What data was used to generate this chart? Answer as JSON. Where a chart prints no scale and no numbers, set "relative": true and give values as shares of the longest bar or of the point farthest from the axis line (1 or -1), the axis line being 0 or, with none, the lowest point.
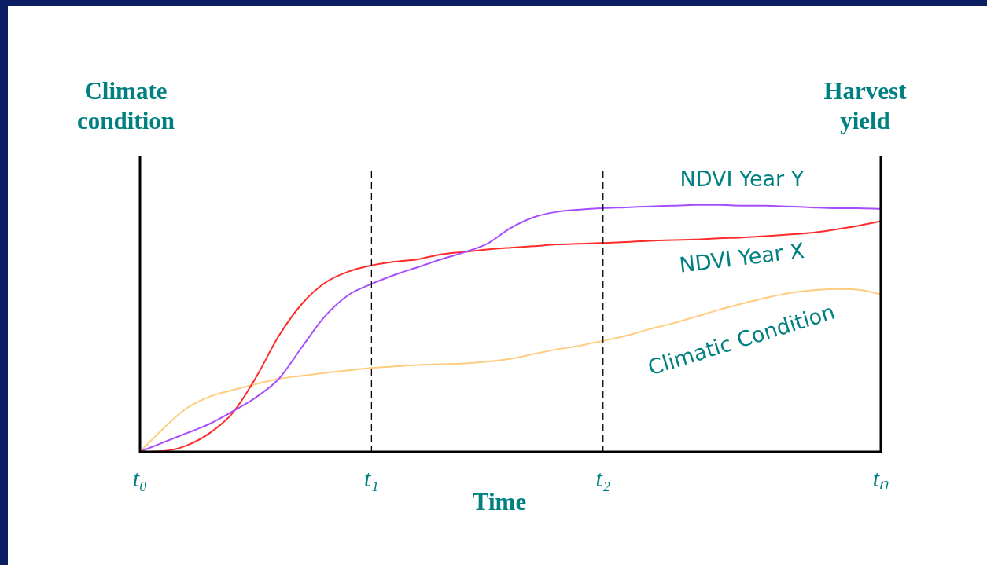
{
  "chart_data": {
    "type": "line",
    "relative": true,
    "xlabel": "Time",
    "ylabel": "Climate condition",
    "y2label": "Harvest yield",
    "categories": [
      "t₀",
      null,
      null,
      null,
      null,
      null,
      null,
      null,
      null,
      null,
      "t₁",
      null,
      null,
      null,
      null,
      null,
      null,
      null,
      null,
      null,
      "t₂",
      null,
      null,
      null,
      null,
      null,
      null,
      null,
      null,
      null,
      null,
      null,
      "tₙ"
    ],
    "series": [
      {
        "name": "NDVI Year Y",
        "color": "#a64dff",
        "values": [
          0,
          0.038,
          0.075,
          0.113,
          0.164,
          0.22,
          0.296,
          0.425,
          0.55,
          0.635,
          0.68,
          0.717,
          0.748,
          0.78,
          0.808,
          0.843,
          0.906,
          0.95,
          0.972,
          0.981,
          0.987,
          0.99,
          0.994,
          0.997,
          1,
          1,
          0.997,
          0.997,
          0.994,
          0.99,
          0.987,
          0.987,
          0.984
        ]
      },
      {
        "name": "NDVI Year X",
        "color": "#ff2a2a",
        "values": [
          0,
          0.003,
          0.025,
          0.075,
          0.157,
          0.3,
          0.47,
          0.6,
          0.685,
          0.73,
          0.755,
          0.77,
          0.78,
          0.8,
          0.81,
          0.82,
          0.827,
          0.833,
          0.84,
          0.843,
          0.846,
          0.85,
          0.855,
          0.858,
          0.86,
          0.865,
          0.868,
          0.874,
          0.88,
          0.887,
          0.9,
          0.915,
          0.934
        ]
      },
      {
        "name": "Climatic Condition",
        "color": "#ffcc80",
        "values": [
          0,
          0.094,
          0.176,
          0.223,
          0.25,
          0.274,
          0.296,
          0.308,
          0.32,
          0.33,
          0.34,
          0.346,
          0.352,
          0.355,
          0.358,
          0.365,
          0.377,
          0.396,
          0.415,
          0.43,
          0.45,
          0.47,
          0.497,
          0.52,
          0.547,
          0.575,
          0.6,
          0.623,
          0.642,
          0.654,
          0.66,
          0.657,
          0.638
        ]
      }
    ],
    "ref_lines": [
      {
        "axis": "x",
        "value": "t₁",
        "color": "#000000",
        "line_style": "dashed"
      },
      {
        "axis": "x",
        "value": "t₂",
        "color": "#000000",
        "line_style": "dashed"
      }
    ],
    "grid": false,
    "legend": false,
    "marker": "none",
    "line_style": "solid"
  }
}
